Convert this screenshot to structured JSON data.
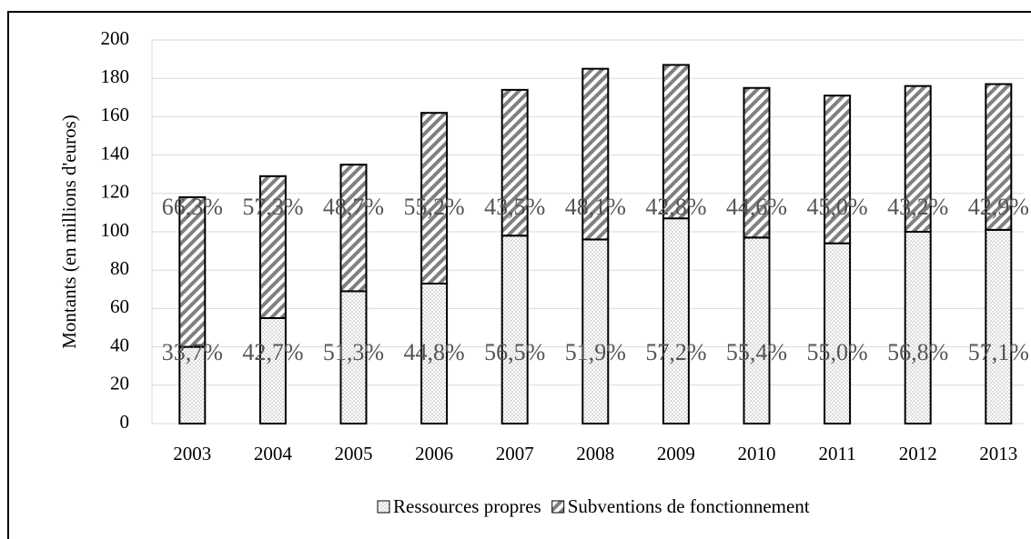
{
  "chart_data": {
    "type": "stacked_bar",
    "ylabel": "Montants (en millions d'euros)",
    "categories": [
      "2003",
      "2004",
      "2005",
      "2006",
      "2007",
      "2008",
      "2009",
      "2010",
      "2011",
      "2012",
      "2013"
    ],
    "series": [
      {
        "name": "Ressources propres",
        "color": "#808080",
        "pattern": "dots",
        "values": [
          40,
          55,
          69,
          73,
          98,
          96,
          107,
          97,
          94,
          100,
          101
        ],
        "percent_labels": [
          "33,7%",
          "42,7%",
          "51,3%",
          "44,8%",
          "56,5%",
          "51,9%",
          "57,2%",
          "55,4%",
          "55,0%",
          "56,8%",
          "57,1%"
        ]
      },
      {
        "name": "Subventions de fonctionnement",
        "color": "#808080",
        "pattern": "hatch",
        "values": [
          78,
          74,
          66,
          89,
          76,
          89,
          80,
          78,
          77,
          76,
          76
        ],
        "percent_labels": [
          "66,3%",
          "57,3%",
          "48,7%",
          "55,2%",
          "43,5%",
          "48,1%",
          "42,8%",
          "44,6%",
          "45,0%",
          "43,2%",
          "42,9%"
        ]
      }
    ],
    "ylim": [
      0,
      200
    ],
    "yticks": [
      0,
      20,
      40,
      60,
      80,
      100,
      120,
      140,
      160,
      180,
      200
    ],
    "grid": true,
    "legend": "bottom"
  }
}
